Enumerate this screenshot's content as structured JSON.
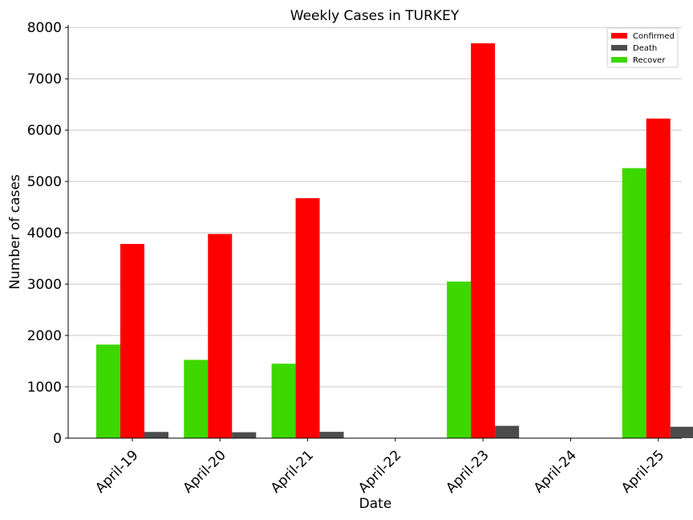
{
  "chart_data": {
    "type": "bar",
    "title": "Weekly Cases in TURKEY",
    "xlabel": "Date",
    "ylabel": "Number of cases",
    "categories": [
      "April-19",
      "April-20",
      "April-21",
      "April-22",
      "April-23",
      "April-24",
      "April-25"
    ],
    "series": [
      {
        "name": "Recover",
        "color": "#3dd800",
        "values": [
          1823,
          1525,
          1450,
          0,
          3050,
          0,
          5260
        ]
      },
      {
        "name": "Confirmed",
        "color": "#ff0000",
        "values": [
          3783,
          3977,
          4674,
          0,
          7691,
          0,
          6225
        ]
      },
      {
        "name": "Death",
        "color": "#4c4c4c",
        "values": [
          121,
          115,
          123,
          0,
          240,
          0,
          222
        ]
      }
    ],
    "legend_order": [
      "Confirmed",
      "Death",
      "Recover"
    ],
    "ylim": [
      0,
      8050
    ],
    "yticks": [
      0,
      1000,
      2000,
      3000,
      4000,
      5000,
      6000,
      7000,
      8000
    ],
    "grid": "horizontal",
    "legend_position": "top-right"
  }
}
